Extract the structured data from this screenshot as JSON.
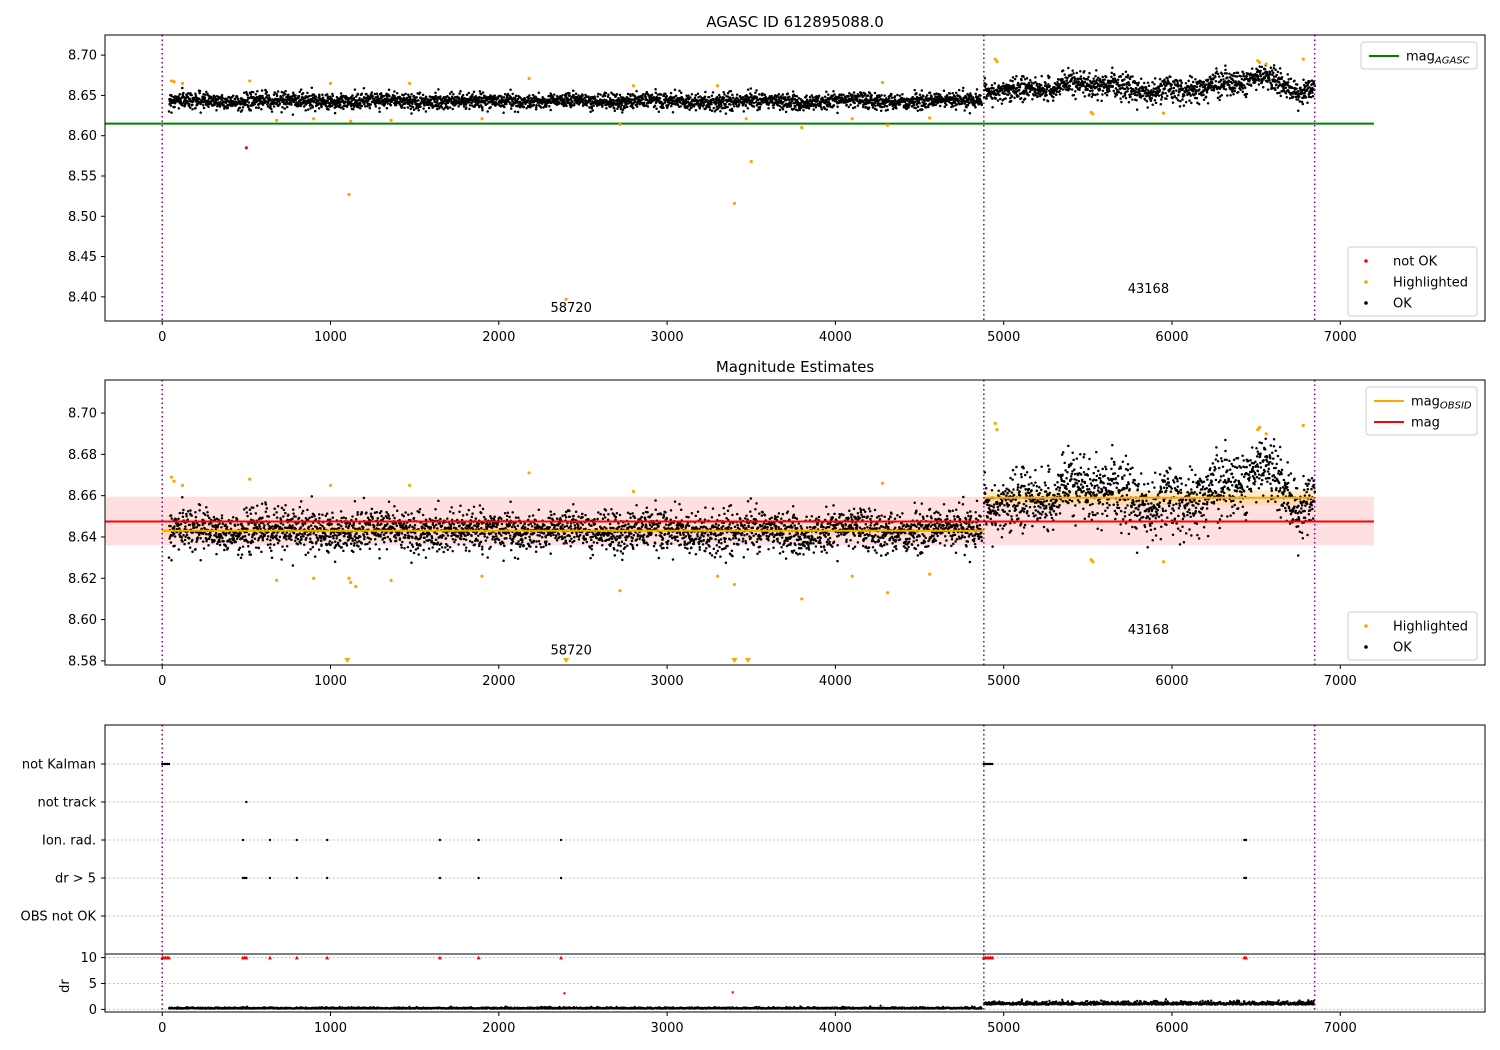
{
  "chart_data": [
    {
      "type": "scatter",
      "title": "AGASC ID 612895088.0",
      "xlim": [
        -340,
        7860
      ],
      "ylim": [
        8.37,
        8.725
      ],
      "xticks": [
        0,
        1000,
        2000,
        3000,
        4000,
        5000,
        6000,
        7000
      ],
      "yticks": [
        8.4,
        8.45,
        8.5,
        8.55,
        8.6,
        8.65,
        8.7
      ],
      "ytick_labels": [
        "8.40",
        "8.45",
        "8.50",
        "8.55",
        "8.60",
        "8.65",
        "8.70"
      ],
      "grid": false,
      "vlines": [
        0,
        4882,
        6848
      ],
      "hlines": [
        {
          "y": 8.615,
          "x": [
            -340,
            7200
          ],
          "color": "#008000"
        }
      ],
      "ok_segments": [
        {
          "x": [
            40,
            4870
          ],
          "center": 8.643,
          "spread": 0.009
        },
        {
          "x": [
            4882,
            6848
          ],
          "center": 8.66,
          "spread": 0.013
        }
      ],
      "highlighted_points": [
        [
          55,
          8.668
        ],
        [
          70,
          8.667
        ],
        [
          120,
          8.665
        ],
        [
          520,
          8.668
        ],
        [
          680,
          8.619
        ],
        [
          900,
          8.621
        ],
        [
          1000,
          8.665
        ],
        [
          1110,
          8.527
        ],
        [
          1120,
          8.618
        ],
        [
          1360,
          8.619
        ],
        [
          1470,
          8.665
        ],
        [
          1900,
          8.621
        ],
        [
          2180,
          8.671
        ],
        [
          2400,
          8.397
        ],
        [
          2720,
          8.614
        ],
        [
          2800,
          8.662
        ],
        [
          3300,
          8.662
        ],
        [
          3400,
          8.516
        ],
        [
          3470,
          8.621
        ],
        [
          3500,
          8.568
        ],
        [
          3800,
          8.61
        ],
        [
          4100,
          8.621
        ],
        [
          4280,
          8.666
        ],
        [
          4310,
          8.613
        ],
        [
          4560,
          8.622
        ],
        [
          4950,
          8.695
        ],
        [
          4960,
          8.692
        ],
        [
          5520,
          8.629
        ],
        [
          5530,
          8.627
        ],
        [
          5950,
          8.628
        ],
        [
          6510,
          8.693
        ],
        [
          6520,
          8.691
        ],
        [
          6560,
          8.689
        ],
        [
          6780,
          8.695
        ]
      ],
      "not_ok_points": [
        [
          500,
          8.585
        ]
      ],
      "annotations": [
        {
          "text": "58720",
          "x": 2430,
          "y": 8.381
        },
        {
          "text": "43168",
          "x": 5860,
          "y": 8.405
        }
      ],
      "legends": [
        {
          "position": "top-right",
          "entries": [
            {
              "label": "mag",
              "sub": "AGASC",
              "kind": "line",
              "color": "#008000"
            }
          ]
        },
        {
          "position": "bottom-right",
          "entries": [
            {
              "label": "not OK",
              "kind": "dot",
              "color": "#ff0000"
            },
            {
              "label": "Highlighted",
              "kind": "dot",
              "color": "#ffa500"
            },
            {
              "label": "OK",
              "kind": "dot",
              "color": "#000000"
            }
          ]
        }
      ]
    },
    {
      "type": "scatter",
      "title": "Magnitude Estimates",
      "xlim": [
        -340,
        7860
      ],
      "ylim": [
        8.578,
        8.716
      ],
      "xticks": [
        0,
        1000,
        2000,
        3000,
        4000,
        5000,
        6000,
        7000
      ],
      "yticks": [
        8.58,
        8.6,
        8.62,
        8.64,
        8.66,
        8.68,
        8.7
      ],
      "ytick_labels": [
        "8.58",
        "8.60",
        "8.62",
        "8.64",
        "8.66",
        "8.68",
        "8.70"
      ],
      "grid": false,
      "vlines": [
        0,
        4882,
        6848
      ],
      "band": {
        "x": [
          -340,
          7200
        ],
        "y": [
          8.636,
          8.6595
        ],
        "color": "#ffcccc"
      },
      "segment_bands": [
        {
          "x": [
            0,
            4882
          ],
          "y": [
            8.6405,
            8.6455
          ],
          "color": "#ffd27f"
        },
        {
          "x": [
            4882,
            6848
          ],
          "y": [
            8.6555,
            8.6625
          ],
          "color": "#ffd27f"
        }
      ],
      "hlines": [
        {
          "name": "mag",
          "y": 8.6475,
          "x": [
            -340,
            7200
          ],
          "color": "#ff0000"
        },
        {
          "name": "mag OBSID",
          "y": 8.643,
          "x": [
            0,
            4882
          ],
          "color": "#ffa500"
        },
        {
          "name": "mag OBSID",
          "y": 8.659,
          "x": [
            4882,
            6848
          ],
          "color": "#ffa500"
        }
      ],
      "ok_segments": [
        {
          "x": [
            40,
            4870
          ],
          "center": 8.643,
          "spread": 0.009
        },
        {
          "x": [
            4882,
            6848
          ],
          "center": 8.66,
          "spread": 0.013
        }
      ],
      "highlighted_points": [
        [
          55,
          8.669
        ],
        [
          70,
          8.667
        ],
        [
          120,
          8.665
        ],
        [
          520,
          8.668
        ],
        [
          680,
          8.619
        ],
        [
          900,
          8.62
        ],
        [
          1000,
          8.665
        ],
        [
          1110,
          8.62
        ],
        [
          1120,
          8.618
        ],
        [
          1150,
          8.616
        ],
        [
          1360,
          8.619
        ],
        [
          1470,
          8.665
        ],
        [
          1900,
          8.621
        ],
        [
          2180,
          8.671
        ],
        [
          2720,
          8.614
        ],
        [
          2800,
          8.662
        ],
        [
          3300,
          8.621
        ],
        [
          3400,
          8.617
        ],
        [
          3800,
          8.61
        ],
        [
          4100,
          8.621
        ],
        [
          4280,
          8.666
        ],
        [
          4310,
          8.613
        ],
        [
          4560,
          8.622
        ],
        [
          4950,
          8.695
        ],
        [
          4960,
          8.692
        ],
        [
          5520,
          8.629
        ],
        [
          5530,
          8.628
        ],
        [
          5950,
          8.628
        ],
        [
          6510,
          8.692
        ],
        [
          6520,
          8.693
        ],
        [
          6560,
          8.69
        ],
        [
          6780,
          8.694
        ]
      ],
      "offscale_markers": [
        1100,
        2400,
        3400,
        3480
      ],
      "annotations": [
        {
          "text": "58720",
          "x": 2430,
          "y": 8.583
        },
        {
          "text": "43168",
          "x": 5860,
          "y": 8.593
        }
      ],
      "legends": [
        {
          "position": "top-right",
          "entries": [
            {
              "label": "mag",
              "sub": "OBSID",
              "kind": "line",
              "color": "#ffa500"
            },
            {
              "label": "mag",
              "kind": "line",
              "color": "#ff0000"
            }
          ]
        },
        {
          "position": "bottom-right",
          "entries": [
            {
              "label": "Highlighted",
              "kind": "dot",
              "color": "#ffa500"
            },
            {
              "label": "OK",
              "kind": "dot",
              "color": "#000000"
            }
          ]
        }
      ]
    },
    {
      "type": "scatter",
      "title": "",
      "xlim": [
        -340,
        7860
      ],
      "grid": true,
      "vlines": [
        0,
        4882,
        6848
      ],
      "flag_categories": [
        "not Kalman",
        "not track",
        "Ion. rad.",
        "dr > 5",
        "OBS not OK"
      ],
      "flag_points": {
        "not Kalman": [
          0,
          10,
          20,
          30,
          40,
          4882,
          4892,
          4902,
          4912,
          4922,
          4932
        ],
        "not track": [
          500
        ],
        "Ion. rad.": [
          480,
          640,
          800,
          980,
          1650,
          1880,
          2370,
          6430,
          6440
        ],
        "dr > 5": [
          480,
          490,
          500,
          640,
          800,
          980,
          1650,
          1880,
          2370,
          6430,
          6440
        ],
        "OBS not OK": []
      }
    },
    {
      "type": "scatter",
      "title": "",
      "xlim": [
        -340,
        7860
      ],
      "ylim": [
        -0.5,
        10.7
      ],
      "yticks": [
        0,
        5,
        10
      ],
      "ytick_labels": [
        "0",
        "5",
        "10"
      ],
      "xticks": [
        0,
        1000,
        2000,
        3000,
        4000,
        5000,
        6000,
        7000
      ],
      "ylabel": "dr",
      "grid": true,
      "vlines": [
        0,
        4882,
        6848
      ],
      "capped_points_at_10": [
        0,
        10,
        20,
        30,
        40,
        480,
        490,
        500,
        640,
        800,
        980,
        1650,
        1880,
        2370,
        4882,
        4892,
        4902,
        4912,
        4922,
        4932,
        6430,
        6440
      ],
      "red_points": [
        [
          2390,
          3.1
        ],
        [
          3390,
          3.3
        ]
      ],
      "dr_segments": [
        {
          "x": [
            40,
            4870
          ],
          "center": 0.25,
          "spread": 0.2
        },
        {
          "x": [
            4882,
            6848
          ],
          "center": 0.9,
          "spread": 0.35
        }
      ]
    }
  ]
}
